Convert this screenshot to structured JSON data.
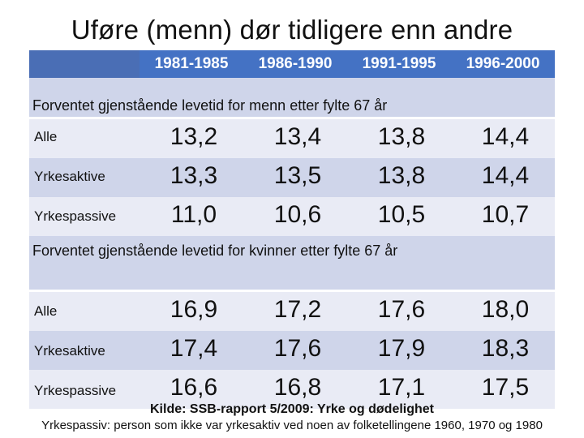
{
  "title": "Uføre (menn) dør tidligere enn andre",
  "periods": [
    "1981-1985",
    "1986-1990",
    "1991-1995",
    "1996-2000"
  ],
  "sections": [
    {
      "heading": "Forventet gjenstående levetid for menn etter fylte 67 år",
      "rows": [
        {
          "label": "Alle",
          "values": [
            "13,2",
            "13,4",
            "13,8",
            "14,4"
          ]
        },
        {
          "label": "Yrkesaktive",
          "values": [
            "13,3",
            "13,5",
            "13,8",
            "14,4"
          ]
        },
        {
          "label": "Yrkespassive",
          "values": [
            "11,0",
            "10,6",
            "10,5",
            "10,7"
          ]
        }
      ]
    },
    {
      "heading": "Forventet gjenstående levetid for kvinner etter fylte 67 år",
      "rows": [
        {
          "label": "Alle",
          "values": [
            "16,9",
            "17,2",
            "17,6",
            "18,0"
          ]
        },
        {
          "label": "Yrkesaktive",
          "values": [
            "17,4",
            "17,6",
            "17,9",
            "18,3"
          ]
        },
        {
          "label": "Yrkespassive",
          "values": [
            "16,6",
            "16,8",
            "17,1",
            "17,5"
          ]
        }
      ]
    }
  ],
  "source": "Kilde: SSB-rapport 5/2009: Yrke og dødelighet",
  "note": "Yrkespassiv: person som ikke var yrkesaktiv ved noen av folketellingene 1960, 1970 og 1980",
  "colors": {
    "header": "#4472c4",
    "band": "#cfd5ea",
    "row": "#e9ebf5"
  }
}
